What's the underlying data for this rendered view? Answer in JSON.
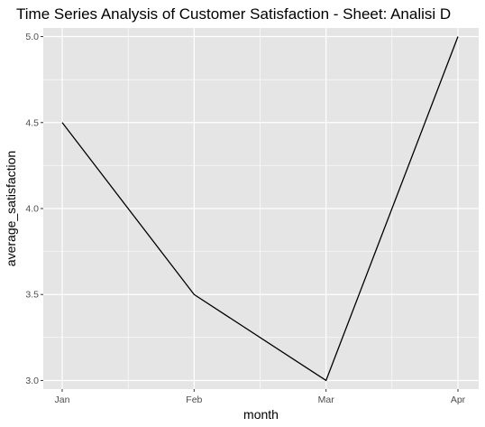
{
  "chart_data": {
    "type": "line",
    "title": "Time Series Analysis of Customer Satisfaction - Sheet: Analisi D",
    "xlabel": "month",
    "ylabel": "average_satisfaction",
    "categories": [
      "Jan",
      "Feb",
      "Mar",
      "Apr"
    ],
    "series": [
      {
        "values": [
          4.5,
          3.5,
          3.0,
          5.0
        ]
      }
    ],
    "ylim": [
      2.95,
      5.05
    ],
    "yticks": [
      3.0,
      3.5,
      4.0,
      4.5,
      5.0
    ],
    "ytick_labels": [
      "3.0",
      "3.5",
      "4.0",
      "4.5",
      "5.0"
    ],
    "grid": true,
    "line_color": "#000000",
    "panel_color": "#e5e5e5",
    "grid_color": "#ffffff"
  }
}
